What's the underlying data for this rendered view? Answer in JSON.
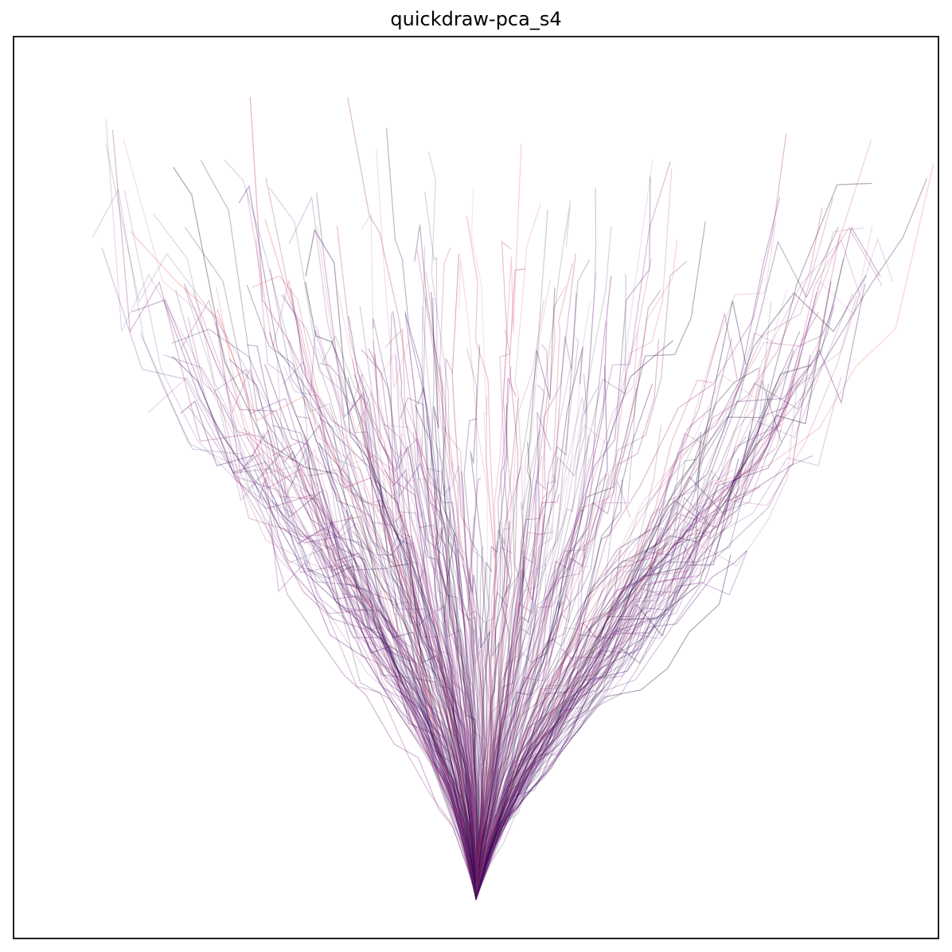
{
  "chart_data": {
    "type": "line",
    "title": "quickdraw-pca_s4",
    "xlabel": "",
    "ylabel": "",
    "grid": false,
    "legend": "none",
    "ticks": "none",
    "xlim": [
      -1.0,
      1.0
    ],
    "ylim": [
      -0.05,
      1.0
    ],
    "origin": [
      0.0,
      0.0
    ],
    "colormap": "magma",
    "series": [
      {
        "x": [
          0.0,
          -0.04,
          -0.09,
          -0.16,
          -0.24,
          -0.33,
          -0.43,
          -0.54,
          -0.64,
          -0.72,
          -0.78,
          -0.82
        ]
      },
      {
        "x": [
          0.0,
          -0.03,
          -0.07,
          -0.12,
          -0.18,
          -0.26,
          -0.35,
          -0.45,
          -0.56,
          -0.67,
          -0.76,
          -0.85
        ]
      },
      {
        "x": [
          0.0,
          -0.02,
          -0.05,
          -0.09,
          -0.14,
          -0.2,
          -0.27,
          -0.34,
          -0.41,
          -0.48,
          -0.54,
          -0.59
        ]
      },
      {
        "x": [
          0.0,
          -0.01,
          -0.03,
          -0.06,
          -0.1,
          -0.15,
          -0.2,
          -0.26,
          -0.31,
          -0.36,
          -0.4,
          -0.44
        ]
      },
      {
        "x": [
          0.0,
          -0.01,
          -0.02,
          -0.04,
          -0.07,
          -0.11,
          -0.15,
          -0.19,
          -0.23,
          -0.27,
          -0.31,
          -0.34
        ]
      },
      {
        "x": [
          0.0,
          0.0,
          -0.01,
          -0.02,
          -0.04,
          -0.06,
          -0.09,
          -0.12,
          -0.15,
          -0.18,
          -0.2,
          -0.22
        ]
      },
      {
        "x": [
          0.0,
          0.01,
          0.01,
          0.01,
          0.0,
          -0.01,
          -0.03,
          -0.05,
          -0.07,
          -0.09,
          -0.1,
          -0.11
        ]
      },
      {
        "x": [
          0.0,
          0.01,
          0.03,
          0.05,
          0.06,
          0.08,
          0.09,
          0.1,
          0.1,
          0.1,
          0.11,
          0.12
        ]
      },
      {
        "x": [
          0.0,
          0.02,
          0.05,
          0.08,
          0.12,
          0.16,
          0.2,
          0.24,
          0.28,
          0.32,
          0.35,
          0.37
        ]
      },
      {
        "x": [
          0.0,
          0.03,
          0.07,
          0.12,
          0.18,
          0.24,
          0.31,
          0.38,
          0.45,
          0.51,
          0.56,
          0.6
        ]
      },
      {
        "x": [
          0.0,
          0.04,
          0.09,
          0.16,
          0.24,
          0.33,
          0.42,
          0.52,
          0.61,
          0.69,
          0.76,
          0.82
        ]
      },
      {
        "x": [
          0.0,
          0.05,
          0.11,
          0.19,
          0.29,
          0.4,
          0.52,
          0.64,
          0.75,
          0.85,
          0.93,
          0.99
        ]
      }
    ]
  }
}
